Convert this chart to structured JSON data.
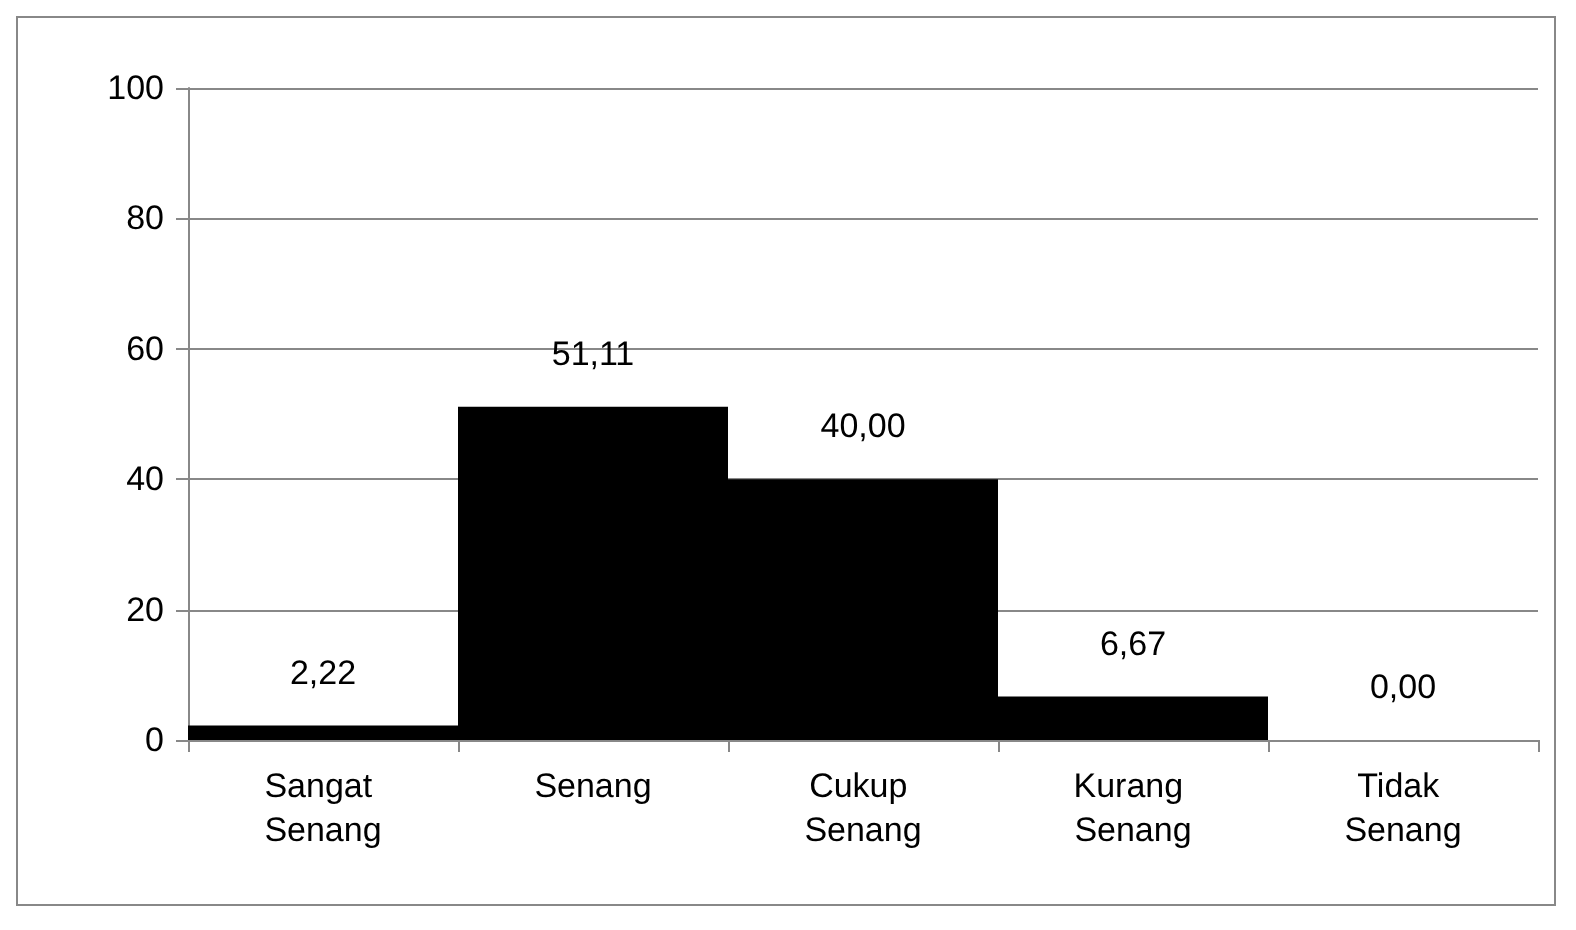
{
  "chart_data": {
    "type": "bar",
    "categories": [
      "Sangat Senang",
      "Senang",
      "Cukup Senang",
      "Kurang Senang",
      "Tidak Senang"
    ],
    "values": [
      2.22,
      51.11,
      40,
      6.67,
      0
    ],
    "value_labels": [
      "2,22",
      "51,11",
      "40,00",
      "6,67",
      "0,00"
    ],
    "color": "#000000",
    "ylim": [
      0,
      100
    ],
    "yticks": [
      0,
      20,
      40,
      60,
      80,
      100
    ],
    "grid": "y"
  }
}
